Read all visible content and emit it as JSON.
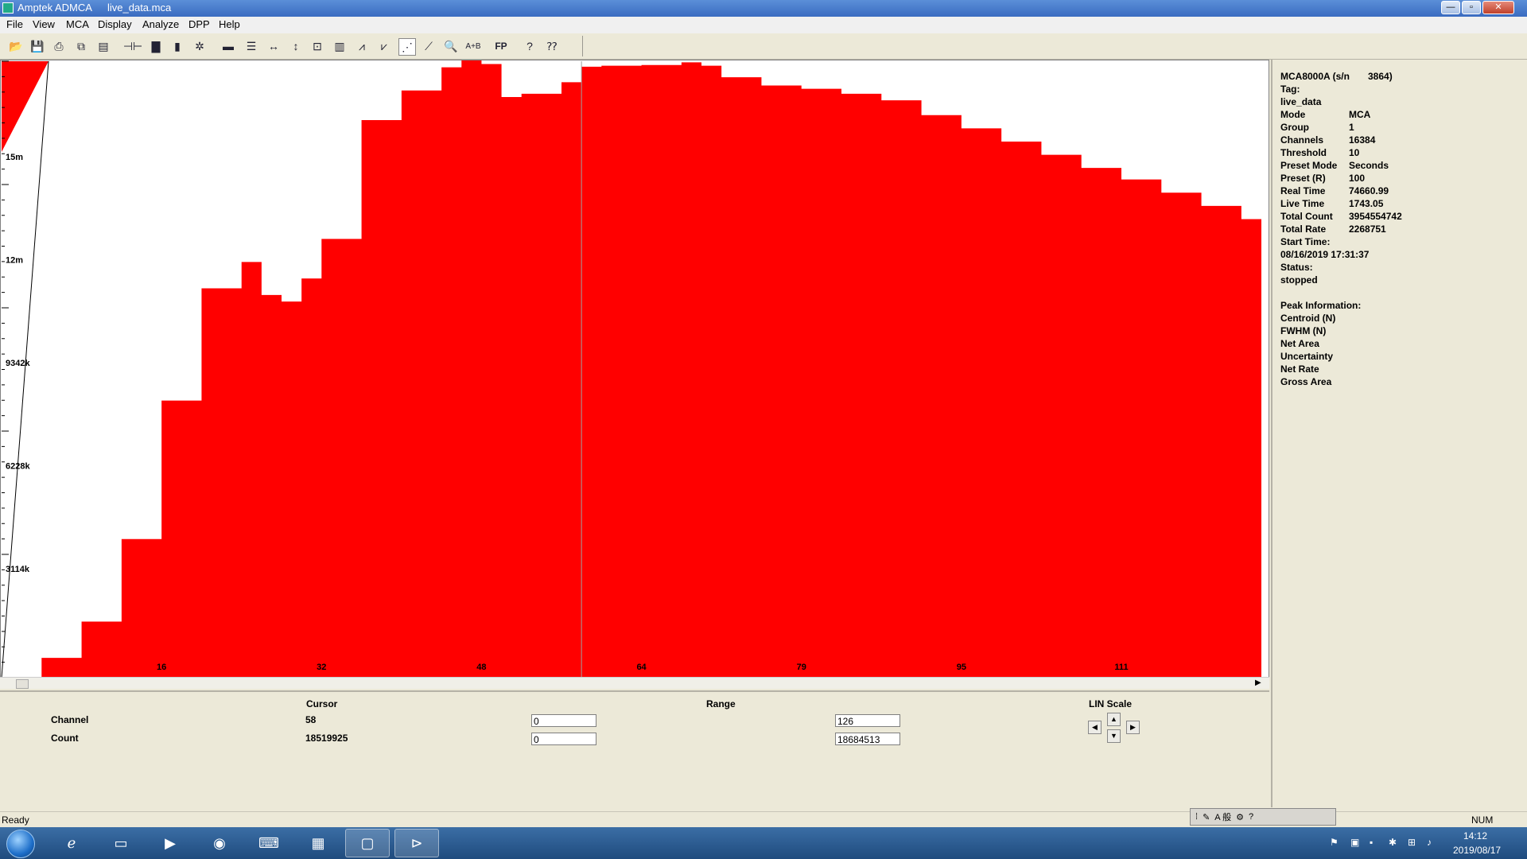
{
  "window": {
    "app_name": "Amptek ADMCA",
    "file_name": "live_data.mca",
    "min_glyph": "—",
    "max_glyph": "▫",
    "close_glyph": "✕"
  },
  "menu": [
    "File",
    "View",
    "MCA",
    "Display",
    "Analyze",
    "DPP",
    "Help"
  ],
  "toolbar_icons": [
    "open-icon",
    "save-icon",
    "print-icon",
    "copy-icon",
    "paste-icon",
    "connect-icon",
    "acquire-icon",
    "battery-icon",
    "settings-icon",
    "spectrum-icon",
    "list-icon",
    "expand-horizontal-icon",
    "expand-vertical-icon",
    "zoom-box-icon",
    "bar-icon",
    "peaks-icon",
    "peak-search-icon",
    "log-scale-icon",
    "fit-icon",
    "zoom-icon",
    "ab-icon",
    "fp-icon",
    "help-icon",
    "context-help-icon"
  ],
  "chart_data": {
    "type": "area",
    "color": "#ff0000",
    "cursor_channel": 58,
    "y_tick_labels": [
      "15m",
      "12m",
      "9342k",
      "6228k",
      "3114k"
    ],
    "x_tick_labels": [
      "16",
      "32",
      "48",
      "64",
      "79",
      "95",
      "111"
    ],
    "x_range": [
      0,
      126
    ],
    "y_range": [
      0,
      18684513
    ],
    "x": [
      0,
      4,
      8,
      12,
      16,
      20,
      24,
      26,
      28,
      30,
      32,
      36,
      40,
      44,
      46,
      48,
      50,
      52,
      56,
      58,
      60,
      64,
      68,
      70,
      72,
      76,
      80,
      84,
      88,
      92,
      96,
      100,
      104,
      108,
      112,
      116,
      120,
      124,
      126
    ],
    "y": [
      0,
      600000,
      1700000,
      4200000,
      8400000,
      11800000,
      12600000,
      11600000,
      11400000,
      12100000,
      13300000,
      16900000,
      17800000,
      18500000,
      18750000,
      18600000,
      17600000,
      17700000,
      18050000,
      18520000,
      18550000,
      18570000,
      18650000,
      18550000,
      18200000,
      17950000,
      17850000,
      17700000,
      17500000,
      17050000,
      16650000,
      16250000,
      15850000,
      15450000,
      15100000,
      14700000,
      14300000,
      13900000,
      13700000
    ]
  },
  "info_panel": {
    "rows": [
      [
        "MCA8000A (s/n",
        "3864)"
      ],
      [
        "Tag:",
        ""
      ],
      [
        "live_data",
        ""
      ],
      [
        "Mode",
        "MCA"
      ],
      [
        "Group",
        "1"
      ],
      [
        "Channels",
        "16384"
      ],
      [
        "Threshold",
        "10"
      ],
      [
        "Preset Mode",
        "Seconds"
      ],
      [
        "Preset (R)",
        "100"
      ],
      [
        "Real Time",
        "74660.99"
      ],
      [
        "Live Time",
        "1743.05"
      ],
      [
        "Total Count",
        "3954554742"
      ],
      [
        "Total Rate",
        "2268751"
      ],
      [
        "Start Time:",
        ""
      ],
      [
        "08/16/2019 17:31:37",
        ""
      ],
      [
        "Status:",
        ""
      ],
      [
        "stopped",
        ""
      ],
      [
        "",
        ""
      ],
      [
        "Peak Information:",
        ""
      ],
      [
        "Centroid (N)",
        ""
      ],
      [
        "FWHM (N)",
        ""
      ],
      [
        "Net Area",
        ""
      ],
      [
        "Uncertainty",
        ""
      ],
      [
        "Net Rate",
        ""
      ],
      [
        "Gross Area",
        ""
      ]
    ]
  },
  "bottom": {
    "cursor_header": "Cursor",
    "range_header": "Range",
    "scale_label": "LIN Scale",
    "channel_label": "Channel",
    "count_label": "Count",
    "cursor_channel": "58",
    "cursor_count": "18519925",
    "range_channel_low": "0",
    "range_channel_high": "126",
    "range_count_low": "0",
    "range_count_high": "18684513",
    "left_arrow": "◀",
    "right_arrow": "▶",
    "up_arrow": "▲",
    "down_arrow": "▼"
  },
  "status": {
    "text": "Ready",
    "num": "NUM",
    "ime_text": "A 般"
  },
  "taskbar": {
    "time": "14:12",
    "date": "2019/08/17",
    "apps": [
      "ie-icon",
      "explorer-icon",
      "media-player-icon",
      "chrome-icon",
      "network-app-icon",
      "toolbox-icon",
      "window-icon",
      "admca-icon"
    ]
  }
}
